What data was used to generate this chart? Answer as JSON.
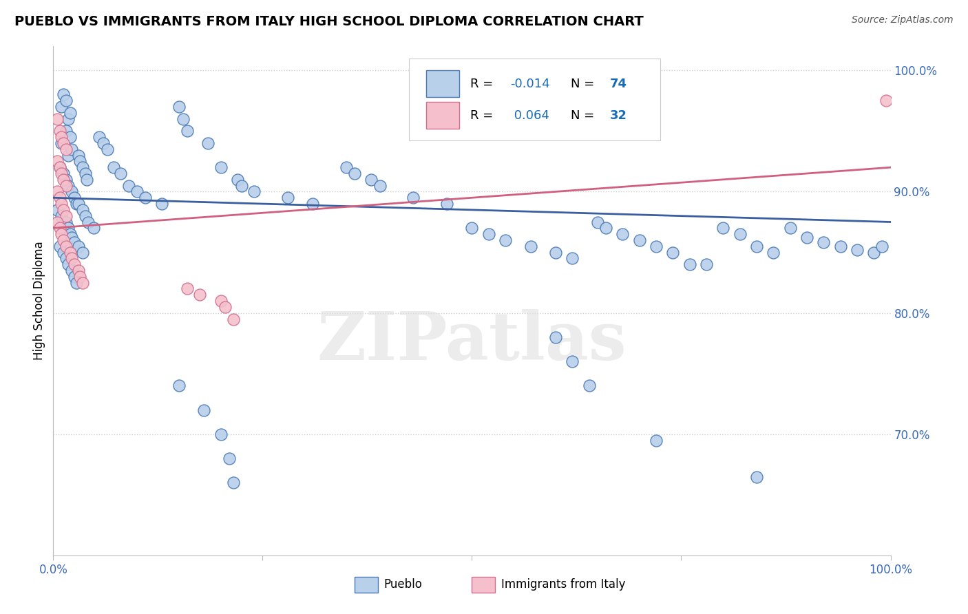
{
  "title": "PUEBLO VS IMMIGRANTS FROM ITALY HIGH SCHOOL DIPLOMA CORRELATION CHART",
  "source": "Source: ZipAtlas.com",
  "ylabel": "High School Diploma",
  "legend_label_blue": "Pueblo",
  "legend_label_pink": "Immigrants from Italy",
  "blue_scatter_face": "#b8d0ea",
  "blue_scatter_edge": "#4a7ab5",
  "pink_scatter_face": "#f5c0cc",
  "pink_scatter_edge": "#d07090",
  "blue_trend_color": "#3a5fa0",
  "pink_trend_color": "#d06080",
  "tick_color": "#3a6ab8",
  "background_color": "#ffffff",
  "watermark": "ZIPatlas",
  "blue_points": [
    [
      0.01,
      0.97
    ],
    [
      0.012,
      0.98
    ],
    [
      0.015,
      0.975
    ],
    [
      0.018,
      0.96
    ],
    [
      0.02,
      0.965
    ],
    [
      0.01,
      0.94
    ],
    [
      0.015,
      0.95
    ],
    [
      0.018,
      0.93
    ],
    [
      0.02,
      0.945
    ],
    [
      0.022,
      0.935
    ],
    [
      0.008,
      0.92
    ],
    [
      0.012,
      0.915
    ],
    [
      0.015,
      0.91
    ],
    [
      0.018,
      0.905
    ],
    [
      0.022,
      0.9
    ],
    [
      0.025,
      0.895
    ],
    [
      0.028,
      0.89
    ],
    [
      0.005,
      0.885
    ],
    [
      0.01,
      0.88
    ],
    [
      0.015,
      0.875
    ],
    [
      0.018,
      0.87
    ],
    [
      0.02,
      0.865
    ],
    [
      0.022,
      0.862
    ],
    [
      0.025,
      0.858
    ],
    [
      0.008,
      0.855
    ],
    [
      0.012,
      0.85
    ],
    [
      0.015,
      0.845
    ],
    [
      0.018,
      0.84
    ],
    [
      0.022,
      0.835
    ],
    [
      0.025,
      0.83
    ],
    [
      0.028,
      0.825
    ],
    [
      0.03,
      0.93
    ],
    [
      0.032,
      0.925
    ],
    [
      0.035,
      0.92
    ],
    [
      0.038,
      0.915
    ],
    [
      0.04,
      0.91
    ],
    [
      0.03,
      0.89
    ],
    [
      0.035,
      0.885
    ],
    [
      0.038,
      0.88
    ],
    [
      0.042,
      0.875
    ],
    [
      0.048,
      0.87
    ],
    [
      0.03,
      0.855
    ],
    [
      0.035,
      0.85
    ],
    [
      0.055,
      0.945
    ],
    [
      0.06,
      0.94
    ],
    [
      0.065,
      0.935
    ],
    [
      0.072,
      0.92
    ],
    [
      0.08,
      0.915
    ],
    [
      0.09,
      0.905
    ],
    [
      0.1,
      0.9
    ],
    [
      0.11,
      0.895
    ],
    [
      0.13,
      0.89
    ],
    [
      0.15,
      0.97
    ],
    [
      0.155,
      0.96
    ],
    [
      0.16,
      0.95
    ],
    [
      0.185,
      0.94
    ],
    [
      0.2,
      0.92
    ],
    [
      0.22,
      0.91
    ],
    [
      0.225,
      0.905
    ],
    [
      0.24,
      0.9
    ],
    [
      0.28,
      0.895
    ],
    [
      0.31,
      0.89
    ],
    [
      0.35,
      0.92
    ],
    [
      0.36,
      0.915
    ],
    [
      0.38,
      0.91
    ],
    [
      0.39,
      0.905
    ],
    [
      0.43,
      0.895
    ],
    [
      0.47,
      0.89
    ],
    [
      0.5,
      0.87
    ],
    [
      0.52,
      0.865
    ],
    [
      0.54,
      0.86
    ],
    [
      0.57,
      0.855
    ],
    [
      0.6,
      0.85
    ],
    [
      0.62,
      0.845
    ],
    [
      0.65,
      0.875
    ],
    [
      0.66,
      0.87
    ],
    [
      0.68,
      0.865
    ],
    [
      0.7,
      0.86
    ],
    [
      0.72,
      0.855
    ],
    [
      0.74,
      0.85
    ],
    [
      0.76,
      0.84
    ],
    [
      0.78,
      0.84
    ],
    [
      0.8,
      0.87
    ],
    [
      0.82,
      0.865
    ],
    [
      0.84,
      0.855
    ],
    [
      0.86,
      0.85
    ],
    [
      0.88,
      0.87
    ],
    [
      0.9,
      0.862
    ],
    [
      0.92,
      0.858
    ],
    [
      0.94,
      0.855
    ],
    [
      0.96,
      0.852
    ],
    [
      0.98,
      0.85
    ],
    [
      0.15,
      0.74
    ],
    [
      0.18,
      0.72
    ],
    [
      0.2,
      0.7
    ],
    [
      0.21,
      0.68
    ],
    [
      0.215,
      0.66
    ],
    [
      0.6,
      0.78
    ],
    [
      0.62,
      0.76
    ],
    [
      0.64,
      0.74
    ],
    [
      0.72,
      0.695
    ],
    [
      0.84,
      0.665
    ],
    [
      0.99,
      0.855
    ]
  ],
  "pink_points": [
    [
      0.005,
      0.96
    ],
    [
      0.008,
      0.95
    ],
    [
      0.01,
      0.945
    ],
    [
      0.012,
      0.94
    ],
    [
      0.015,
      0.935
    ],
    [
      0.005,
      0.925
    ],
    [
      0.008,
      0.92
    ],
    [
      0.01,
      0.915
    ],
    [
      0.012,
      0.91
    ],
    [
      0.015,
      0.905
    ],
    [
      0.005,
      0.9
    ],
    [
      0.008,
      0.895
    ],
    [
      0.01,
      0.89
    ],
    [
      0.012,
      0.885
    ],
    [
      0.015,
      0.88
    ],
    [
      0.005,
      0.875
    ],
    [
      0.008,
      0.87
    ],
    [
      0.01,
      0.865
    ],
    [
      0.012,
      0.86
    ],
    [
      0.015,
      0.855
    ],
    [
      0.02,
      0.85
    ],
    [
      0.022,
      0.845
    ],
    [
      0.025,
      0.84
    ],
    [
      0.03,
      0.835
    ],
    [
      0.032,
      0.83
    ],
    [
      0.035,
      0.825
    ],
    [
      0.16,
      0.82
    ],
    [
      0.175,
      0.815
    ],
    [
      0.2,
      0.81
    ],
    [
      0.205,
      0.805
    ],
    [
      0.215,
      0.795
    ],
    [
      0.995,
      0.975
    ]
  ],
  "blue_line": {
    "x0": 0.0,
    "x1": 1.0,
    "y0": 0.895,
    "y1": 0.875
  },
  "pink_line": {
    "x0": 0.0,
    "x1": 1.0,
    "y0": 0.87,
    "y1": 0.92
  },
  "xlim": [
    0.0,
    1.0
  ],
  "ylim": [
    0.6,
    1.02
  ],
  "yticks": [
    1.0,
    0.9,
    0.8,
    0.7
  ],
  "ytick_labels": [
    "100.0%",
    "90.0%",
    "80.0%",
    "70.0%"
  ],
  "grid_color": "#cccccc",
  "title_fontsize": 14,
  "tick_fontsize": 12,
  "legend_r_color": "#1a6bb5",
  "legend_n_color": "#1a6bb5"
}
